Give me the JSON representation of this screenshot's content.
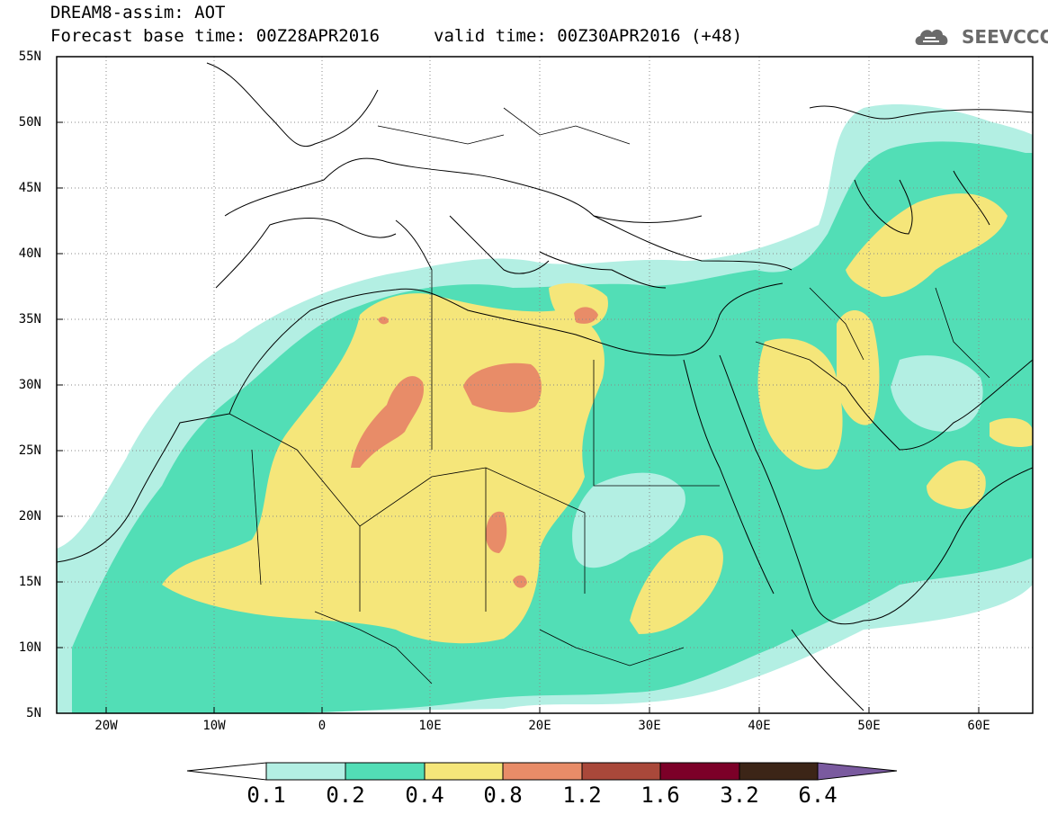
{
  "title": {
    "line1": "DREAM8-assim: AOT",
    "line2": "Forecast base time: 00Z28APR2016",
    "valid": "valid time: 00Z30APR2016 (+48)"
  },
  "logo": {
    "text": "SEEVCCC",
    "icon": "cloud-logo-icon",
    "color": "#6a6a6a"
  },
  "axes": {
    "lon_range": [
      -25,
      65
    ],
    "lat_range": [
      5,
      55
    ],
    "lat_ticks": [
      "55N",
      "50N",
      "45N",
      "40N",
      "35N",
      "30N",
      "25N",
      "20N",
      "15N",
      "10N",
      "5N"
    ],
    "lon_ticks": [
      "20W",
      "10W",
      "0",
      "10E",
      "20E",
      "30E",
      "40E",
      "50E",
      "60E"
    ],
    "grid": "dotted"
  },
  "colorbar": {
    "levels": [
      "0.1",
      "0.2",
      "0.4",
      "0.8",
      "1.2",
      "1.6",
      "3.2",
      "6.4"
    ],
    "colors": [
      "#ffffff",
      "#b3efe3",
      "#52deb6",
      "#f5e67a",
      "#e88c68",
      "#a9483a",
      "#7c0028",
      "#3c2517",
      "#7a5a9f"
    ]
  }
}
